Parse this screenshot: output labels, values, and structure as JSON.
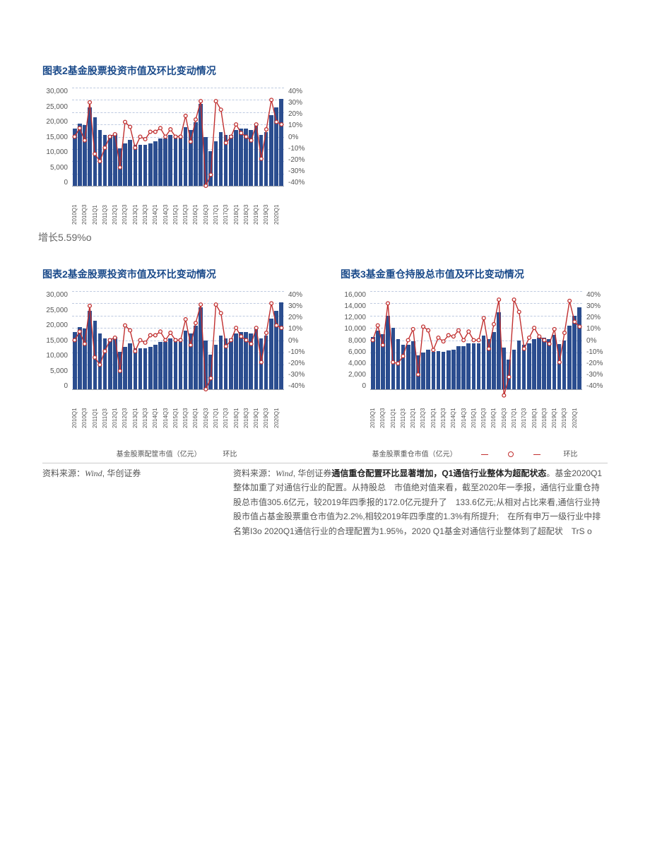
{
  "chart2": {
    "title": "图表2基金股票投资市值及环比变动情况",
    "type": "bar+line",
    "left_axis": {
      "min": 0,
      "max": 30000,
      "step": 5000,
      "label_suffix": "",
      "color": "#555"
    },
    "right_axis": {
      "min": -40,
      "max": 40,
      "step": 10,
      "label_suffix": "%",
      "color": "#555"
    },
    "categories": [
      "2010Q1",
      "2010Q3",
      "2011Q1",
      "2011Q3",
      "2012Q1",
      "2012Q3",
      "2013Q1",
      "2013Q3",
      "2014Q1",
      "2014Q3",
      "2015Q1",
      "2015Q3",
      "2016Q1",
      "2016Q3",
      "2017Q1",
      "2017Q3",
      "2018Q1",
      "2018Q3",
      "2019Q1",
      "2019Q3",
      "2020Q1"
    ],
    "bars_full": [
      17500,
      19000,
      18500,
      24000,
      21000,
      17000,
      15500,
      15500,
      16000,
      11500,
      13000,
      14000,
      12500,
      12500,
      12500,
      13000,
      13500,
      14500,
      14500,
      15500,
      15500,
      15500,
      18000,
      17000,
      19500,
      25000,
      15000,
      10500,
      13500,
      16500,
      15500,
      15500,
      17000,
      17500,
      17500,
      17000,
      18500,
      15500,
      16500,
      21500,
      24000,
      26500
    ],
    "line_full_pct": [
      0,
      7,
      -3,
      28,
      -14,
      -20,
      -9,
      0,
      2,
      -25,
      12,
      8,
      -9,
      0,
      -2,
      4,
      4,
      7,
      0,
      6,
      0,
      0,
      17,
      -4,
      14,
      29,
      -40,
      -31,
      29,
      22,
      -5,
      0,
      10,
      3,
      0,
      -3,
      10,
      -18,
      6,
      30,
      12,
      10
    ],
    "bar_color": "#2b4d8f",
    "line_color": "#c13030",
    "marker_fill": "#ffffff",
    "grid_color": "#8aa0c8",
    "legend": {
      "bar": "基金股票配筐市值（亿元）",
      "line": "环比"
    }
  },
  "chart3": {
    "title": "图表3基金重仓持股总市值及环比变动情况",
    "type": "bar+line",
    "left_axis": {
      "min": 0,
      "max": 16000,
      "step": 2000,
      "label_suffix": "",
      "color": "#555"
    },
    "right_axis": {
      "min": -40,
      "max": 40,
      "step": 10,
      "label_suffix": "%",
      "color": "#555"
    },
    "categories": [
      "2010Q1",
      "2010Q3",
      "2011Q1",
      "2011Q3",
      "2012Q1",
      "2012Q3",
      "2013Q1",
      "2013Q3",
      "2014Q1",
      "2014Q3",
      "2015Q1",
      "2015Q3",
      "2016Q1",
      "2016Q3",
      "2017Q1",
      "2017Q3",
      "2018Q1",
      "2018Q3",
      "2019Q1",
      "2019Q3",
      "2020Q1"
    ],
    "bars_full": [
      8500,
      9500,
      9000,
      12000,
      10000,
      8200,
      7200,
      7200,
      7800,
      5500,
      6000,
      6500,
      6100,
      6200,
      6100,
      6300,
      6500,
      7000,
      7000,
      7500,
      7500,
      7500,
      8800,
      8200,
      9300,
      12500,
      6800,
      4800,
      6400,
      7900,
      7300,
      7500,
      8200,
      8400,
      8400,
      8200,
      8900,
      7400,
      7900,
      10400,
      12000,
      13300
    ],
    "line_full_pct": [
      0,
      12,
      -4,
      30,
      -18,
      -19,
      -13,
      0,
      9,
      -28,
      11,
      8,
      -8,
      2,
      -1,
      4,
      3,
      8,
      0,
      7,
      0,
      0,
      18,
      -7,
      13,
      33,
      -45,
      -30,
      33,
      23,
      -7,
      2,
      10,
      3,
      0,
      -3,
      9,
      -18,
      6,
      32,
      15,
      11
    ],
    "bar_color": "#2b4d8f",
    "line_color": "#c13030",
    "marker_fill": "#ffffff",
    "grid_color": "#8aa0c8",
    "legend": {
      "bar": "基金股票重仓市值（亿元）",
      "line": "环比"
    }
  },
  "growth_text": "增长5.59%o",
  "source": {
    "left": "资料来源：Wind, 华创证券",
    "right_prefix": "资料来源：Wind, 华创证券",
    "right_bold": "通信重仓配置环比显著增加，Q1通信行业整体为超配状态",
    "right_body": "。基金2020Q1整体加重了对通信行业的配置。从持股总　市值绝对值来看，截至2020年一季报，通信行业重仓持股总市值305.6亿元，较2019年四季报的172.0亿元提升了　133.6亿元;从相对占比来看,通信行业持股市值占基金股票重仓市值为2.2%,相较2019年四季度的1.3%有所提升;　在所有申万一级行业中排名第I3o 2020Q1通信行业的合理配置为1.95%，2020 Q1基金对通信行业整体到了超配状　TrS o"
  },
  "style": {
    "title_color": "#1a4a8a",
    "text_color": "#555555",
    "background": "#ffffff",
    "title_fontsize": 14,
    "axis_fontsize": 10,
    "xlabel_fontsize": 8
  }
}
